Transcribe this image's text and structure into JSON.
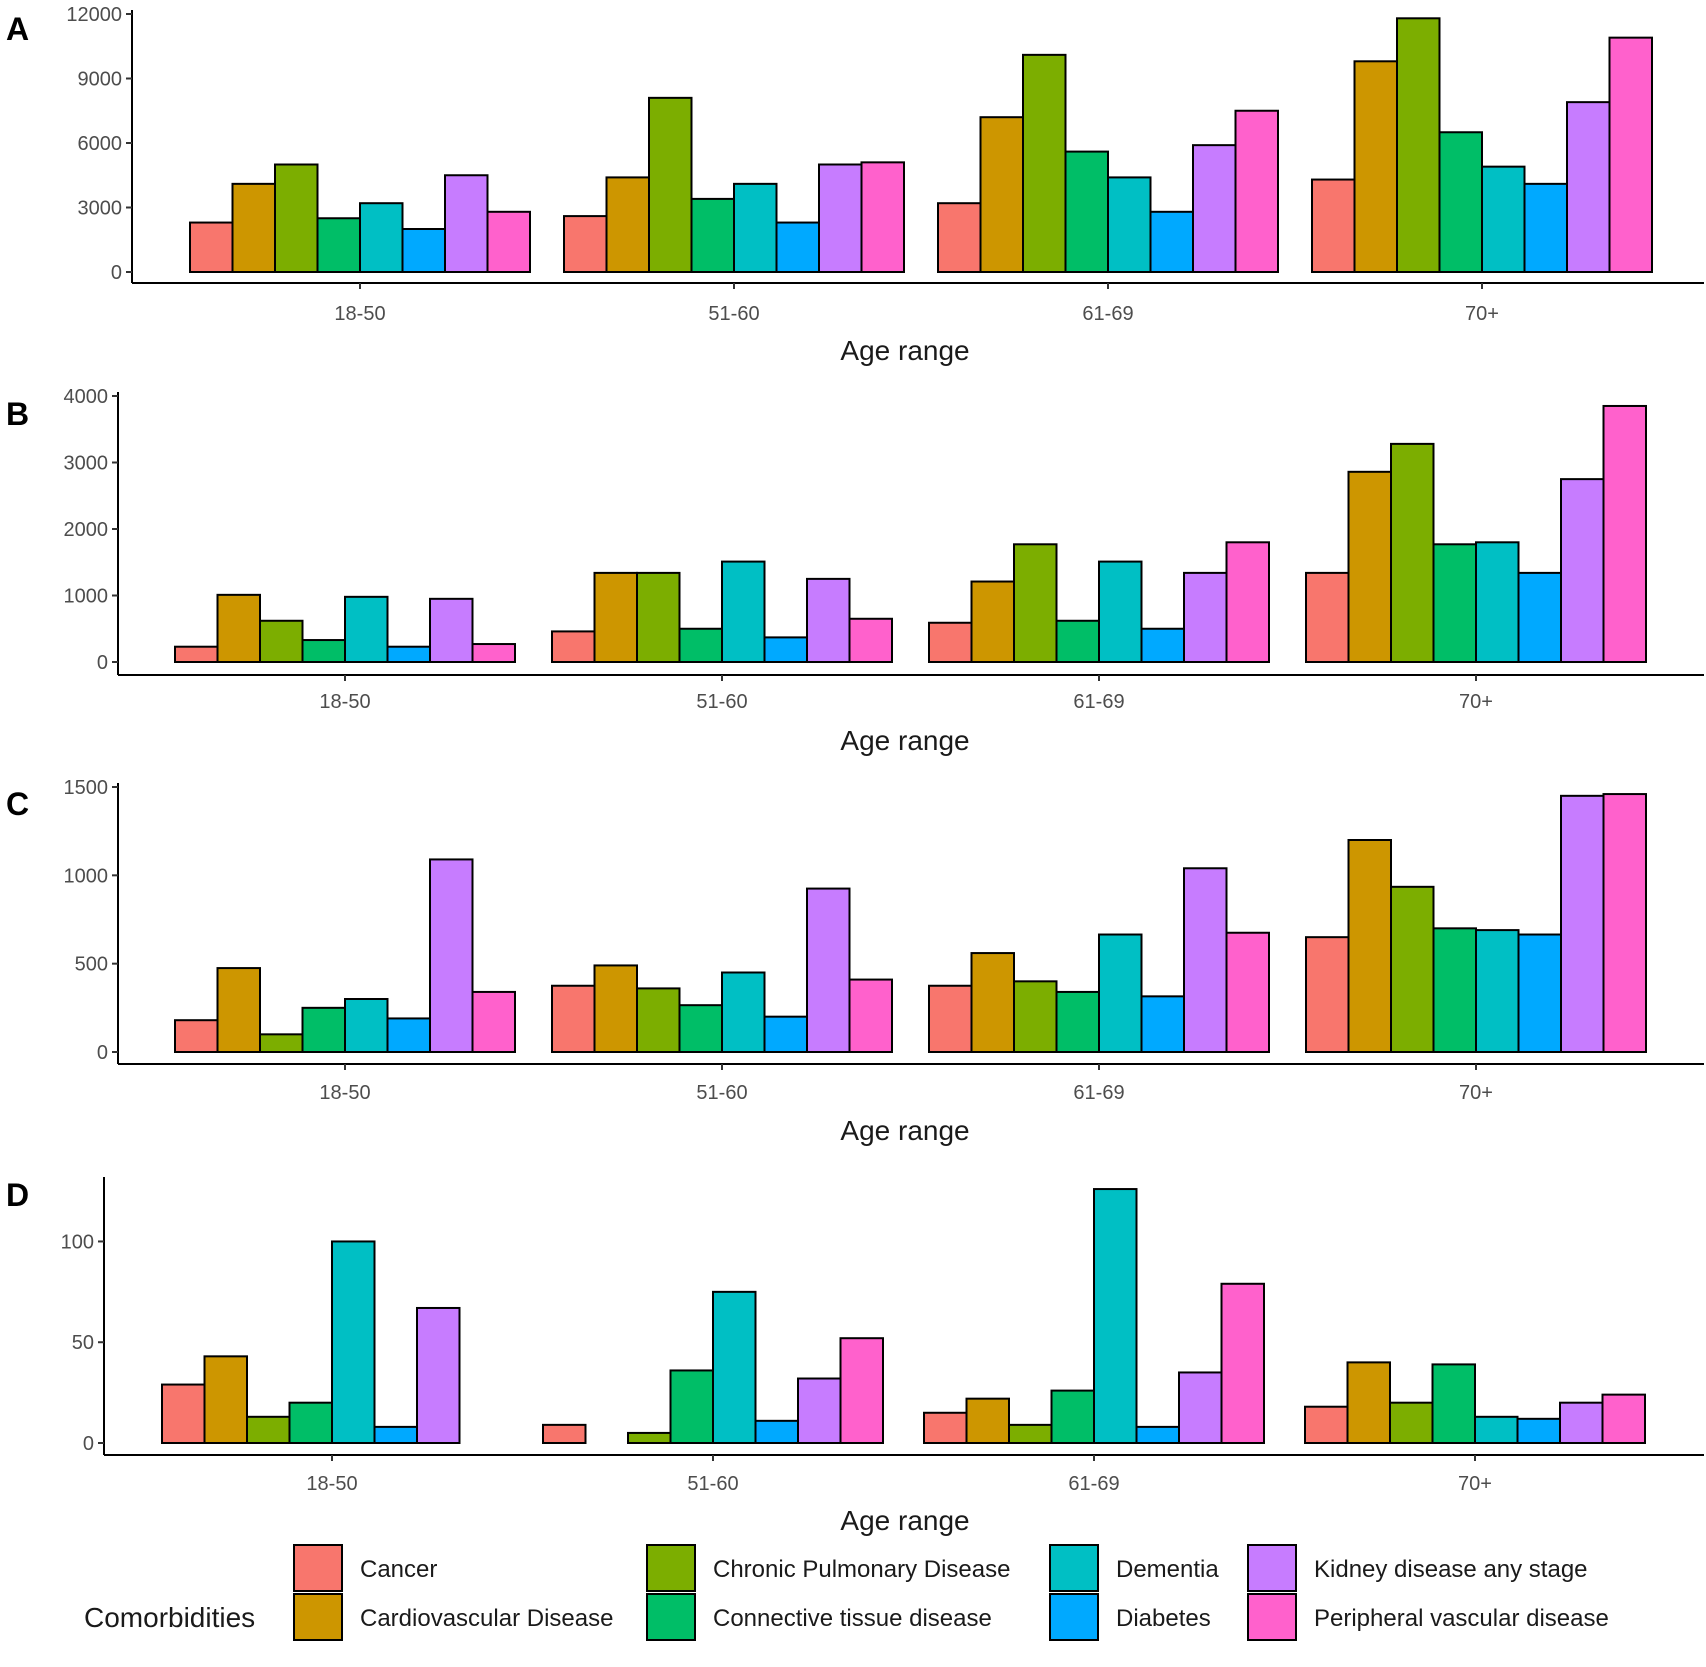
{
  "chart_data": [
    {
      "type": "bar",
      "panel": "A",
      "xlabel": "Age range",
      "categories": [
        "18-50",
        "51-60",
        "61-69",
        "70+"
      ],
      "ylim": [
        0,
        12000
      ],
      "yticks": [
        "0",
        "3000",
        "6000",
        "9000",
        "12000"
      ],
      "grid": false,
      "series": [
        {
          "name": "Cancer",
          "values": [
            2300,
            2600,
            3200,
            4300
          ]
        },
        {
          "name": "Cardiovascular Disease",
          "values": [
            4100,
            4400,
            7200,
            9800
          ]
        },
        {
          "name": "Chronic Pulmonary Disease",
          "values": [
            5000,
            8100,
            10100,
            11800
          ]
        },
        {
          "name": "Connective tissue disease",
          "values": [
            2500,
            3400,
            5600,
            6500
          ]
        },
        {
          "name": "Dementia",
          "values": [
            3200,
            4100,
            4400,
            4900
          ]
        },
        {
          "name": "Diabetes",
          "values": [
            2000,
            2300,
            2800,
            4100
          ]
        },
        {
          "name": "Kidney disease any stage",
          "values": [
            4500,
            5000,
            5900,
            7900
          ]
        },
        {
          "name": "Peripheral vascular disease",
          "values": [
            2800,
            5100,
            7500,
            10900
          ]
        }
      ]
    },
    {
      "type": "bar",
      "panel": "B",
      "xlabel": "Age range",
      "categories": [
        "18-50",
        "51-60",
        "61-69",
        "70+"
      ],
      "ylim": [
        0,
        4000
      ],
      "yticks": [
        "0",
        "1000",
        "2000",
        "3000",
        "4000"
      ],
      "grid": false,
      "series": [
        {
          "name": "Cancer",
          "values": [
            230,
            460,
            590,
            1340
          ]
        },
        {
          "name": "Cardiovascular Disease",
          "values": [
            1010,
            1340,
            1210,
            2860
          ]
        },
        {
          "name": "Chronic Pulmonary Disease",
          "values": [
            620,
            1340,
            1770,
            3280
          ]
        },
        {
          "name": "Connective tissue disease",
          "values": [
            330,
            500,
            620,
            1770
          ]
        },
        {
          "name": "Dementia",
          "values": [
            980,
            1510,
            1510,
            1800
          ]
        },
        {
          "name": "Diabetes",
          "values": [
            230,
            370,
            500,
            1340
          ]
        },
        {
          "name": "Kidney disease any stage",
          "values": [
            950,
            1250,
            1340,
            2750
          ]
        },
        {
          "name": "Peripheral vascular disease",
          "values": [
            270,
            650,
            1800,
            3850
          ]
        }
      ]
    },
    {
      "type": "bar",
      "panel": "C",
      "xlabel": "Age range",
      "categories": [
        "18-50",
        "51-60",
        "61-69",
        "70+"
      ],
      "ylim": [
        0,
        1500
      ],
      "yticks": [
        "0",
        "500",
        "1000",
        "1500"
      ],
      "grid": false,
      "series": [
        {
          "name": "Cancer",
          "values": [
            180,
            375,
            375,
            650
          ]
        },
        {
          "name": "Cardiovascular Disease",
          "values": [
            475,
            490,
            560,
            1200
          ]
        },
        {
          "name": "Chronic Pulmonary Disease",
          "values": [
            100,
            360,
            400,
            935
          ]
        },
        {
          "name": "Connective tissue disease",
          "values": [
            250,
            265,
            340,
            700
          ]
        },
        {
          "name": "Dementia",
          "values": [
            300,
            450,
            665,
            690
          ]
        },
        {
          "name": "Diabetes",
          "values": [
            190,
            200,
            315,
            665
          ]
        },
        {
          "name": "Kidney disease any stage",
          "values": [
            1090,
            925,
            1040,
            1450
          ]
        },
        {
          "name": "Peripheral vascular disease",
          "values": [
            340,
            410,
            675,
            1460
          ]
        }
      ]
    },
    {
      "type": "bar",
      "panel": "D",
      "xlabel": "Age range",
      "categories": [
        "18-50",
        "51-60",
        "61-69",
        "70+"
      ],
      "ylim": [
        0,
        130
      ],
      "yticks": [
        "0",
        "50",
        "100"
      ],
      "grid": false,
      "series": [
        {
          "name": "Cancer",
          "values": [
            29,
            9,
            15,
            18
          ]
        },
        {
          "name": "Cardiovascular Disease",
          "values": [
            43,
            0,
            22,
            40
          ]
        },
        {
          "name": "Chronic Pulmonary Disease",
          "values": [
            13,
            5,
            9,
            20
          ]
        },
        {
          "name": "Connective tissue disease",
          "values": [
            20,
            36,
            26,
            39
          ]
        },
        {
          "name": "Dementia",
          "values": [
            100,
            75,
            126,
            13
          ]
        },
        {
          "name": "Diabetes",
          "values": [
            8,
            11,
            8,
            12
          ]
        },
        {
          "name": "Kidney disease any stage",
          "values": [
            67,
            32,
            35,
            20
          ]
        },
        {
          "name": "Peripheral vascular disease",
          "values": [
            null,
            52,
            79,
            24
          ]
        }
      ]
    }
  ],
  "legend": {
    "title": "Comorbidities",
    "placement": "bottom",
    "items": [
      {
        "label": "Cancer",
        "color": "#F8766D"
      },
      {
        "label": "Cardiovascular Disease",
        "color": "#CD9600"
      },
      {
        "label": "Chronic Pulmonary Disease",
        "color": "#7CAE00"
      },
      {
        "label": "Connective tissue disease",
        "color": "#00BE67"
      },
      {
        "label": "Dementia",
        "color": "#00BFC4"
      },
      {
        "label": "Diabetes",
        "color": "#00A9FF"
      },
      {
        "label": "Kidney disease any stage",
        "color": "#C77CFF"
      },
      {
        "label": "Peripheral vascular disease",
        "color": "#FF61CC"
      }
    ]
  }
}
